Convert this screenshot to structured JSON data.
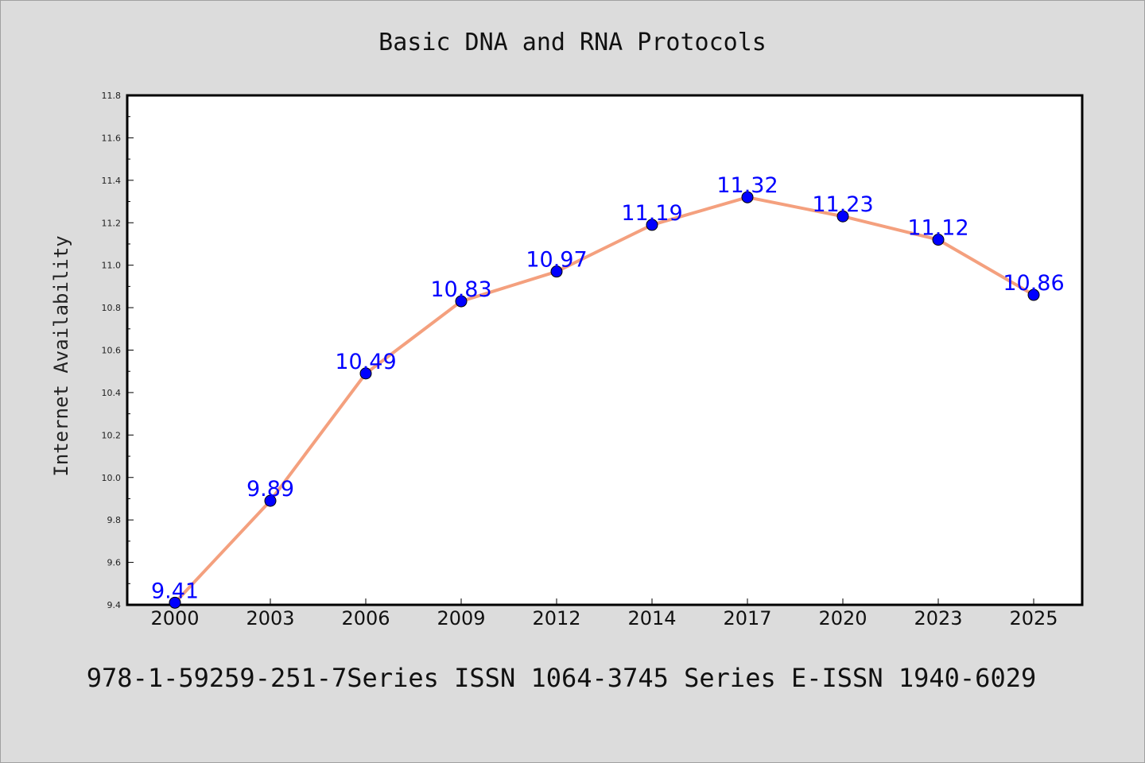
{
  "chart_data": {
    "type": "line",
    "title": "Basic DNA and RNA Protocols",
    "footer": "978-1-59259-251-7Series ISSN 1064-3745 Series E-ISSN 1940-6029",
    "xlabel": "",
    "ylabel": "Internet Availability",
    "categories": [
      "2000",
      "2003",
      "2006",
      "2009",
      "2012",
      "2014",
      "2017",
      "2020",
      "2023",
      "2025"
    ],
    "series": [
      {
        "values": [
          9.41,
          9.89,
          10.49,
          10.83,
          10.97,
          11.19,
          11.32,
          11.23,
          11.12,
          10.86
        ],
        "data_labels": [
          "9.41",
          "9.89",
          "10.49",
          "10.83",
          "10.97",
          "11.19",
          "11.32",
          "11.23",
          "11.12",
          "10.86"
        ]
      }
    ],
    "ylim": [
      9.4,
      11.8
    ],
    "yticks": [
      "9.4",
      "9.6",
      "9.8",
      "10.0",
      "10.2",
      "10.4",
      "10.6",
      "10.8",
      "11.0",
      "11.2",
      "11.4",
      "11.6",
      "11.8"
    ],
    "grid": false,
    "legend": "none",
    "colors": {
      "line": "#f4a07e",
      "marker": "#0000ff",
      "data_label": "#0000ff",
      "background": "#dcdcdc",
      "plot_background": "#ffffff"
    }
  }
}
